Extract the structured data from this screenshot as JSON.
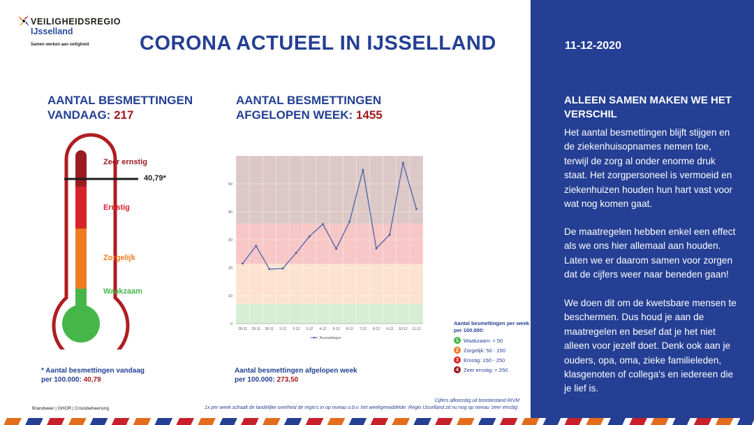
{
  "header": {
    "org_name": "VEILIGHEIDSREGIO",
    "region": "IJsselland",
    "tagline": "Samen werken aan veiligheid",
    "title": "CORONA ACTUEEL IN IJSSELLAND",
    "date": "11-12-2020"
  },
  "today": {
    "heading_line1": "AANTAL BESMETTINGEN",
    "heading_line2": "VANDAAG:",
    "value": "217",
    "note_line1": "* Aantal besmettingen vandaag",
    "note_line2": "per 100.000:",
    "note_value": "40,79"
  },
  "week": {
    "heading_line1": "AANTAL BESMETTINGEN",
    "heading_line2": "AFGELOPEN WEEK:",
    "value": "1455",
    "note_line1": "Aantal besmettingen afgelopen week",
    "note_line2": "per 100.000:",
    "note_value": "273,50"
  },
  "thermometer": {
    "marker_label": "40,79*",
    "marker_value": 40.79,
    "levels": [
      {
        "label": "Zeer ernstig",
        "color": "#9b1b1f"
      },
      {
        "label": "Ernstig",
        "color": "#d9232a"
      },
      {
        "label": "Zorgelijk",
        "color": "#ee7c22"
      },
      {
        "label": "Waakzaam",
        "color": "#46b649"
      }
    ]
  },
  "chart_data": {
    "type": "line",
    "categories": [
      "28-11",
      "29-11",
      "30-11",
      "1-12",
      "2-12",
      "3-12",
      "4-12",
      "5-12",
      "6-12",
      "7-12",
      "8-12",
      "9-12",
      "10-12",
      "11-12"
    ],
    "series": [
      {
        "name": "Besmettingen",
        "values": [
          21.5,
          27.8,
          19.5,
          19.7,
          25.3,
          31.2,
          35.6,
          26.8,
          36.5,
          55,
          26.9,
          31.8,
          57.5,
          41
        ]
      }
    ],
    "yticks": [
      0,
      10,
      20,
      30,
      40,
      50
    ],
    "ylim": [
      0,
      60
    ],
    "bands": [
      {
        "from": 0,
        "to": 7.14,
        "color": "#d6eed3"
      },
      {
        "from": 7.14,
        "to": 21.4,
        "color": "#fde3cf"
      },
      {
        "from": 21.4,
        "to": 35.7,
        "color": "#f7c6c6"
      },
      {
        "from": 35.7,
        "to": 60,
        "color": "#dcc8c6"
      }
    ],
    "legend": "bottom",
    "line_color": "#3e5ba8"
  },
  "legend": {
    "title": "Aantal besmettingen per week per 100.000:",
    "items": [
      {
        "num": "1",
        "label": "Waakzaam: < 50",
        "color": "#46b649"
      },
      {
        "num": "2",
        "label": "Zorgelijk: 50 - 150",
        "color": "#ee7c22"
      },
      {
        "num": "3",
        "label": "Ernstig: 150 - 250",
        "color": "#d9232a"
      },
      {
        "num": "4",
        "label": "Zeer ernstig: > 250",
        "color": "#9b1b1f"
      }
    ]
  },
  "side": {
    "heading": "ALLEEN SAMEN MAKEN WE HET VERSCHIL",
    "p1": "Het aantal besmettingen blijft stijgen en de ziekenhuisopnames nemen toe, terwijl de zorg al onder enorme druk staat. Het zorgpersoneel is vermoeid en ziekenhuizen houden hun hart vast voor wat nog komen gaat.",
    "p2": "De maatregelen hebben enkel een effect als we ons hier allemaal aan houden. Laten we er daarom samen voor zorgen dat de cijfers weer naar beneden gaan!",
    "p3": "We doen dit om de kwetsbare mensen te beschermen. Dus houd je aan de maatregelen en besef dat je het niet alleen voor jezelf doet. Denk ook aan je ouders, opa, oma, zieke familieleden, klasgenoten of collega's en iedereen die je lief is."
  },
  "footer": {
    "source_line1": "Cijfers afkomstig uit bronbestand RIVM",
    "source_line2": "1x per week schaalt de landelijke overheid de regio's in op niveau o.b.v. het weekgemiddelde. Regio IJsselland zit nu nog op niveau 'zeer ernstig'.",
    "partners": "Brandweer | GHOR | Crisisbeheersing"
  }
}
